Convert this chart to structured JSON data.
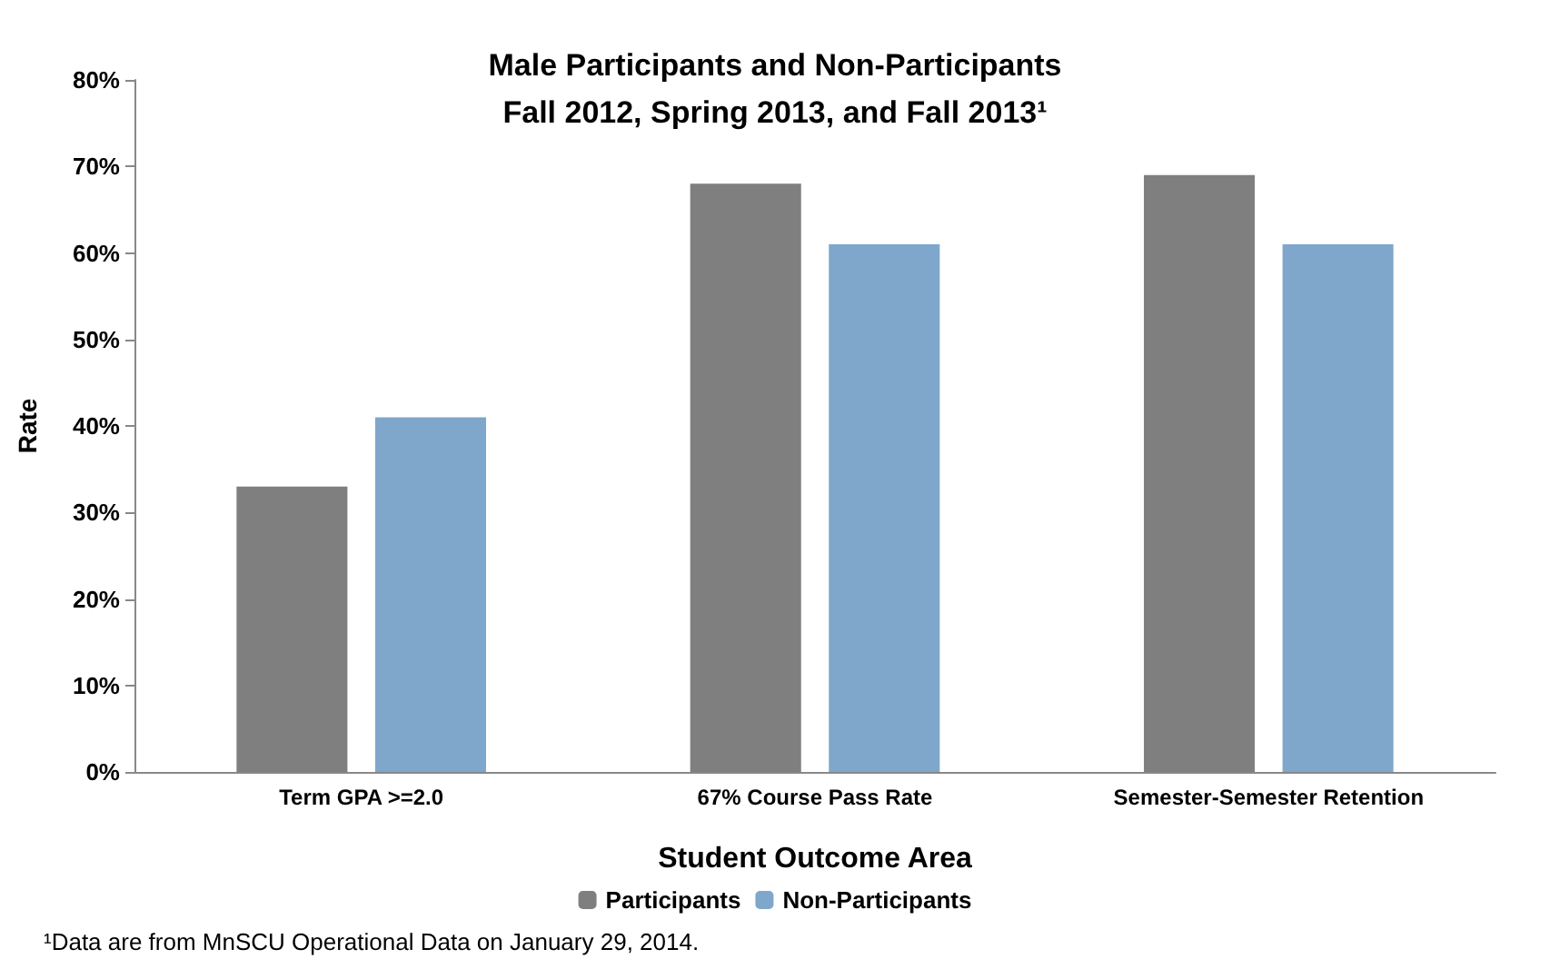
{
  "chart_data": {
    "type": "bar",
    "title": "Male Participants and Non-Participants\nFall 2012, Spring 2013, and Fall 2013¹",
    "xlabel": "Student Outcome Area",
    "ylabel": "Rate",
    "categories": [
      "Term GPA >=2.0",
      "67% Course Pass Rate",
      "Semester-Semester Retention"
    ],
    "series": [
      {
        "name": "Participants",
        "color": "#7f7f7f",
        "values": [
          33,
          68,
          69
        ]
      },
      {
        "name": "Non-Participants",
        "color": "#7ea7cb",
        "values": [
          41,
          61,
          61
        ]
      }
    ],
    "ylim": [
      0,
      80
    ],
    "yticks": [
      {
        "value": 0,
        "label": "0%"
      },
      {
        "value": 10,
        "label": "10%"
      },
      {
        "value": 20,
        "label": "20%"
      },
      {
        "value": 30,
        "label": "30%"
      },
      {
        "value": 40,
        "label": "40%"
      },
      {
        "value": 50,
        "label": "50%"
      },
      {
        "value": 60,
        "label": "60%"
      },
      {
        "value": 70,
        "label": "70%"
      },
      {
        "value": 80,
        "label": "80%"
      }
    ],
    "grid": false,
    "legend": "bottom",
    "annotations": [
      "¹Data are from MnSCU Operational Data on January 29, 2014."
    ]
  }
}
